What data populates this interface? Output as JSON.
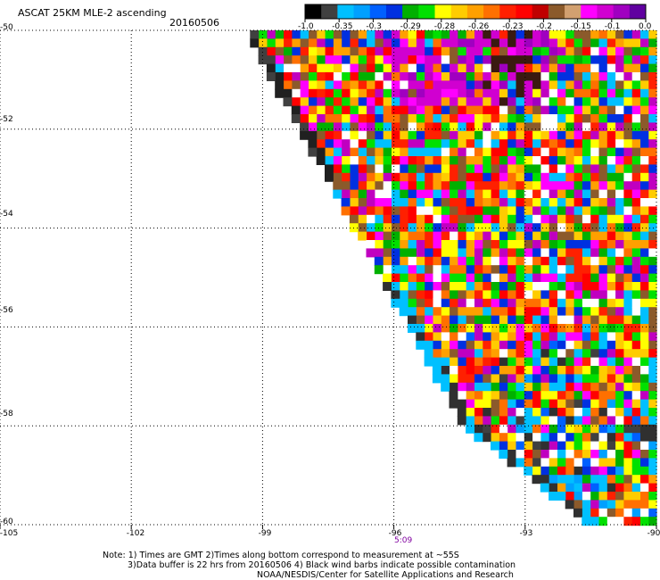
{
  "header": {
    "title": "ASCAT 25KM MLE-2 ascending",
    "date": "20160506"
  },
  "colorbar": {
    "labels": [
      "-1.0",
      "-0.35",
      "-0.3",
      "-0.29",
      "-0.28",
      "-0.26",
      "-0.23",
      "-0.2",
      "-0.15",
      "-0.1",
      "0.0"
    ],
    "colors": [
      "#000000",
      "#404040",
      "#00c0ff",
      "#00a0ff",
      "#0060ff",
      "#0030e0",
      "#00b000",
      "#00e000",
      "#ffff00",
      "#ffcc00",
      "#ffa000",
      "#ff7000",
      "#ff2000",
      "#ff0000",
      "#c00000",
      "#8b5a2b",
      "#d2a070",
      "#ff00ff",
      "#d000d0",
      "#a000c0",
      "#6000a0"
    ]
  },
  "map": {
    "lat_labels": [
      "-50",
      "-52",
      "-54",
      "-56",
      "-58",
      "-60"
    ],
    "lat_values": [
      -50,
      -52,
      -54,
      -56,
      -58,
      -60
    ],
    "lon_labels": [
      "-105",
      "-102",
      "-99",
      "-96",
      "-93",
      "-90"
    ],
    "lon_values": [
      -105,
      -102,
      -99,
      -96,
      -93,
      -90
    ],
    "time_label": "5:09",
    "lon_range": [
      -105,
      -90
    ],
    "lat_range": [
      -60,
      -50
    ],
    "grid": "dotted",
    "swath_edge": [
      [
        -99.5,
        -50
      ],
      [
        -94.5,
        -58
      ],
      [
        -91.6,
        -60
      ]
    ]
  },
  "notes": {
    "line1": "Note: 1) Times are GMT 2)Times along bottom correspond to measurement at ~55S",
    "line2": "3)Data buffer is 22 hrs from 20160506 4) Black wind barbs indicate possible contamination",
    "line3": "NOAA/NESDIS/Center for Satellite Applications and Research"
  }
}
